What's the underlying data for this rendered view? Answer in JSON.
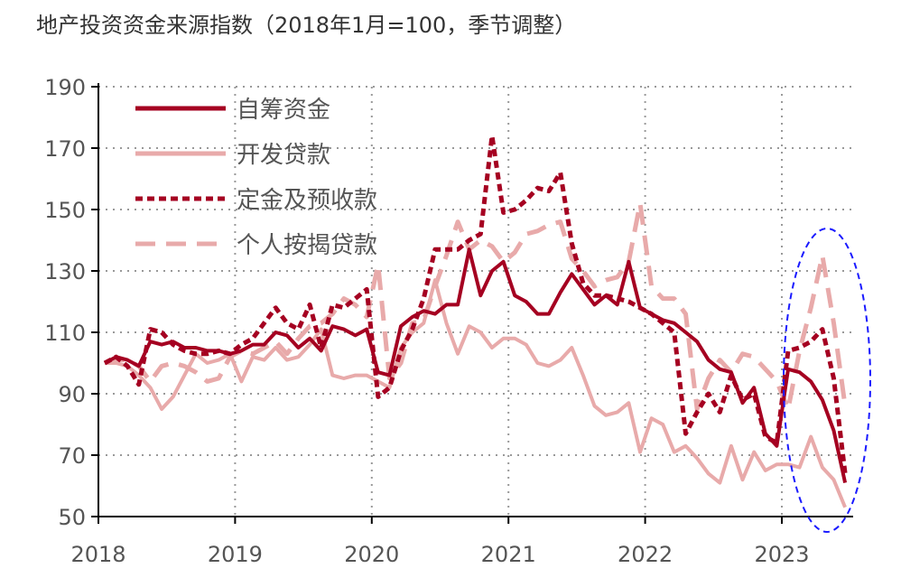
{
  "chart_data": {
    "type": "line",
    "title": "地产投资资金来源指数（2018年1月=100，季节调整）",
    "xlabel": "",
    "ylabel": "",
    "x_start": "2018-01",
    "x_frequency": "monthly",
    "xticks": [
      "2018",
      "2019",
      "2020",
      "2021",
      "2022",
      "2023"
    ],
    "ylim": [
      50,
      190
    ],
    "yticks": [
      50,
      70,
      90,
      110,
      130,
      150,
      170,
      190
    ],
    "grid": "dotted",
    "legend": "top-left",
    "series": [
      {
        "name": "自筹资金",
        "color": "#a50021",
        "style": "solid",
        "values": [
          100,
          102,
          101,
          99,
          107,
          106,
          107,
          105,
          105,
          104,
          104,
          103,
          104,
          106,
          106,
          110,
          109,
          105,
          108,
          104,
          112,
          111,
          109,
          111,
          97,
          96,
          112,
          115,
          117,
          116,
          119,
          119,
          137,
          122,
          130,
          133,
          122,
          120,
          116,
          116,
          123,
          129,
          124,
          119,
          122,
          119,
          133,
          118,
          116,
          114,
          113,
          110,
          107,
          101,
          98,
          97,
          87,
          92,
          77,
          73,
          98,
          97,
          94,
          88,
          78,
          61
        ]
      },
      {
        "name": "开发贷款",
        "color": "#e8aaaa",
        "style": "solid",
        "values": [
          100,
          100,
          99,
          96,
          92,
          85,
          89,
          96,
          103,
          100,
          101,
          103,
          94,
          102,
          101,
          105,
          101,
          102,
          106,
          111,
          96,
          95,
          96,
          96,
          94,
          92,
          105,
          110,
          113,
          127,
          113,
          103,
          112,
          110,
          105,
          108,
          108,
          106,
          100,
          99,
          101,
          105,
          96,
          86,
          83,
          84,
          87,
          71,
          82,
          80,
          71,
          73,
          69,
          64,
          61,
          73,
          62,
          71,
          65,
          67,
          67,
          66,
          76,
          66,
          62,
          53
        ]
      },
      {
        "name": "定金及预收款",
        "color": "#a50021",
        "style": "dotted",
        "values": [
          100,
          102,
          99,
          93,
          111,
          110,
          106,
          104,
          103,
          103,
          104,
          103,
          106,
          108,
          113,
          118,
          113,
          111,
          119,
          105,
          119,
          118,
          121,
          124,
          89,
          92,
          104,
          111,
          121,
          137,
          137,
          137,
          140,
          142,
          174,
          149,
          150,
          153,
          157,
          156,
          162,
          139,
          126,
          122,
          122,
          121,
          120,
          118,
          116,
          113,
          110,
          77,
          84,
          90,
          84,
          96,
          88,
          90,
          76,
          74,
          104,
          105,
          107,
          111,
          95,
          64
        ]
      },
      {
        "name": "个人按揭贷款",
        "color": "#e8aaaa",
        "style": "dashed",
        "values": [
          100,
          101,
          101,
          99,
          94,
          99,
          100,
          99,
          97,
          94,
          95,
          102,
          104,
          103,
          105,
          107,
          103,
          108,
          112,
          113,
          116,
          121,
          119,
          115,
          132,
          95,
          100,
          113,
          114,
          125,
          135,
          146,
          137,
          140,
          138,
          133,
          136,
          142,
          143,
          145,
          146,
          134,
          130,
          125,
          127,
          128,
          133,
          152,
          125,
          121,
          121,
          116,
          85,
          95,
          101,
          97,
          103,
          102,
          98,
          94,
          85,
          104,
          118,
          135,
          113,
          86
        ]
      }
    ],
    "annotation": {
      "shape": "ellipse",
      "color": "#1a1aff",
      "style": "dashed",
      "highlight": "2023"
    }
  }
}
